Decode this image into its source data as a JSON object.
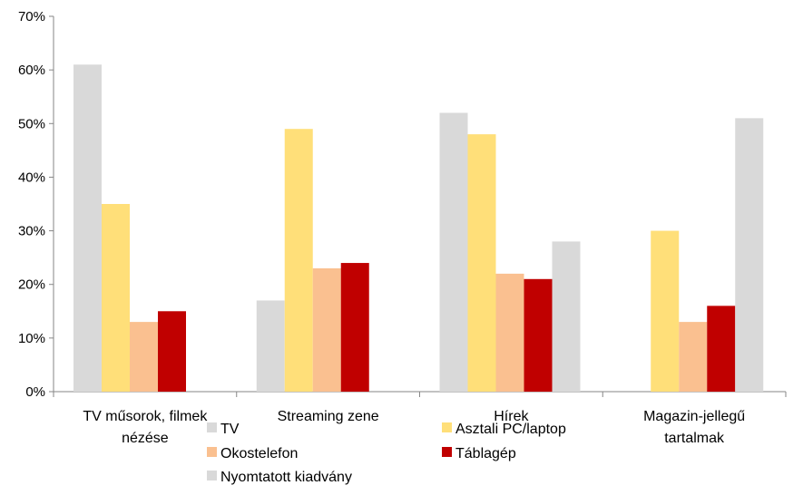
{
  "chart_data": {
    "type": "bar",
    "title": "",
    "xlabel": "",
    "ylabel": "",
    "categories": [
      [
        "TV műsorok, filmek",
        "nézése"
      ],
      [
        "Streaming zene"
      ],
      [
        "Hírek"
      ],
      [
        "Magazin-jellegű",
        "tartalmak"
      ]
    ],
    "ylim": [
      0,
      70
    ],
    "yticks": [
      "0%",
      "10%",
      "20%",
      "30%",
      "40%",
      "50%",
      "60%",
      "70%"
    ],
    "grid": false,
    "legend_position": "bottom",
    "series": [
      {
        "name": "TV",
        "color": "#d9d9d9",
        "values": [
          61,
          17,
          52,
          0
        ]
      },
      {
        "name": "Asztali PC/laptop",
        "color": "#ffdf79",
        "values": [
          35,
          49,
          48,
          30
        ]
      },
      {
        "name": "Okostelefon",
        "color": "#fac090",
        "values": [
          13,
          23,
          22,
          13
        ]
      },
      {
        "name": "Táblagép",
        "color": "#c00000",
        "values": [
          15,
          24,
          21,
          16
        ]
      },
      {
        "name": "Nyomtatott kiadvány",
        "color": "#d9d9d9",
        "values": [
          0,
          0,
          28,
          51
        ]
      }
    ]
  }
}
